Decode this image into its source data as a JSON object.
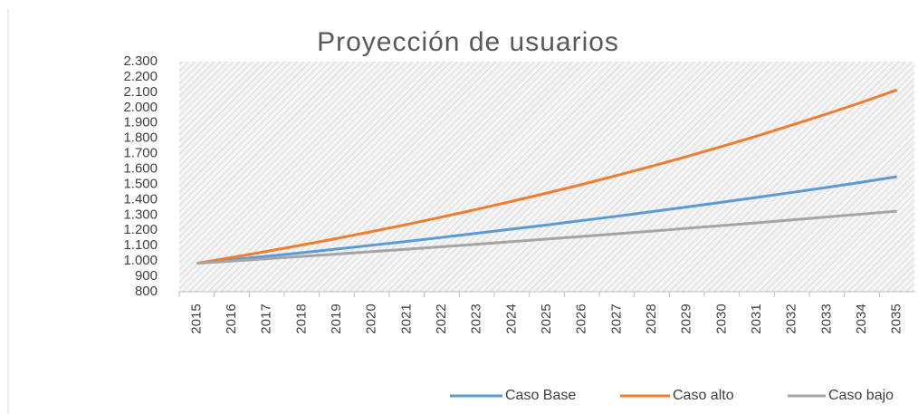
{
  "chart_data": {
    "type": "line",
    "title": "Proyección de usuarios",
    "categories": [
      "2015",
      "2016",
      "2017",
      "2018",
      "2019",
      "2020",
      "2021",
      "2022",
      "2023",
      "2024",
      "2025",
      "2026",
      "2027",
      "2028",
      "2029",
      "2030",
      "2031",
      "2032",
      "2033",
      "2034",
      "2035"
    ],
    "series": [
      {
        "name": "Caso Base",
        "color": "#5b9bd5",
        "values": [
          985,
          1008,
          1031,
          1054,
          1078,
          1103,
          1128,
          1154,
          1181,
          1208,
          1235,
          1264,
          1292,
          1322,
          1352,
          1383,
          1415,
          1447,
          1480,
          1514,
          1550
        ]
      },
      {
        "name": "Caso alto",
        "color": "#ed7d31",
        "values": [
          985,
          1023,
          1063,
          1104,
          1147,
          1192,
          1238,
          1287,
          1337,
          1389,
          1443,
          1499,
          1558,
          1618,
          1681,
          1747,
          1815,
          1886,
          1959,
          2035,
          2115
        ]
      },
      {
        "name": "Caso bajo",
        "color": "#a5a5a5",
        "values": [
          985,
          1000,
          1015,
          1030,
          1045,
          1061,
          1077,
          1093,
          1109,
          1126,
          1143,
          1160,
          1177,
          1195,
          1213,
          1231,
          1249,
          1268,
          1287,
          1306,
          1325
        ]
      }
    ],
    "ylim": [
      800,
      2300
    ],
    "yticks": [
      800,
      900,
      {
        "value": 1000,
        "label": "1.000"
      },
      {
        "value": 1100,
        "label": "1.100"
      },
      {
        "value": 1200,
        "label": "1.200"
      },
      {
        "value": 1300,
        "label": "1.300"
      },
      {
        "value": 1400,
        "label": "1.400"
      },
      {
        "value": 1500,
        "label": "1.500"
      },
      {
        "value": 1600,
        "label": "1.600"
      },
      {
        "value": 1700,
        "label": "1.700"
      },
      {
        "value": 1800,
        "label": "1.800"
      },
      {
        "value": 1900,
        "label": "1.900"
      },
      {
        "value": 2000,
        "label": "2.000"
      },
      {
        "value": 2100,
        "label": "2.100"
      },
      {
        "value": 2200,
        "label": "2.200"
      },
      {
        "value": 2300,
        "label": "2.300"
      }
    ],
    "legend": "bottom-right"
  }
}
